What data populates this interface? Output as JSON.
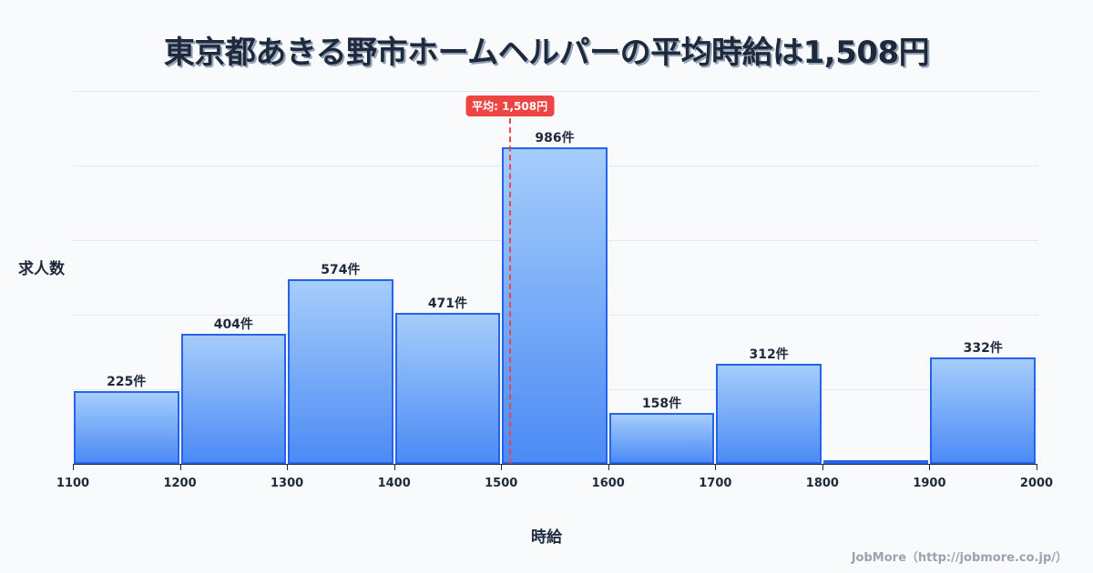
{
  "title": "東京都あきる野市ホームヘルパーの平均時給は1,508円",
  "footer": "JobMore（http://jobmore.co.jp/）",
  "chart_data": {
    "type": "bar",
    "title": "東京都あきる野市ホームヘルパーの平均時給は1,508円",
    "xlabel": "時給",
    "ylabel": "求人数",
    "bins": [
      [
        1100,
        1200
      ],
      [
        1200,
        1300
      ],
      [
        1300,
        1400
      ],
      [
        1400,
        1500
      ],
      [
        1500,
        1600
      ],
      [
        1600,
        1700
      ],
      [
        1700,
        1800
      ],
      [
        1800,
        1900
      ],
      [
        1900,
        2000
      ]
    ],
    "categories": [
      "1100-1200",
      "1200-1300",
      "1300-1400",
      "1400-1500",
      "1500-1600",
      "1600-1700",
      "1700-1800",
      "1800-1900",
      "1900-2000"
    ],
    "values": [
      225,
      404,
      574,
      471,
      986,
      158,
      312,
      10,
      332
    ],
    "labels": [
      "225件",
      "404件",
      "574件",
      "471件",
      "986件",
      "158件",
      "312件",
      "",
      "332件"
    ],
    "x_ticks": [
      "1100",
      "1200",
      "1300",
      "1400",
      "1500",
      "1600",
      "1700",
      "1800",
      "1900",
      "2000"
    ],
    "xlim": [
      1100,
      2000
    ],
    "ylim": [
      0,
      1160
    ],
    "grid": true,
    "mean": 1508,
    "mean_label": "平均: 1,508円",
    "colors": {
      "bar_fill_top": "#a5cdfb",
      "bar_fill_bottom": "#4c8bf5",
      "bar_border": "#2563eb",
      "mean_line": "#ef4444"
    }
  }
}
